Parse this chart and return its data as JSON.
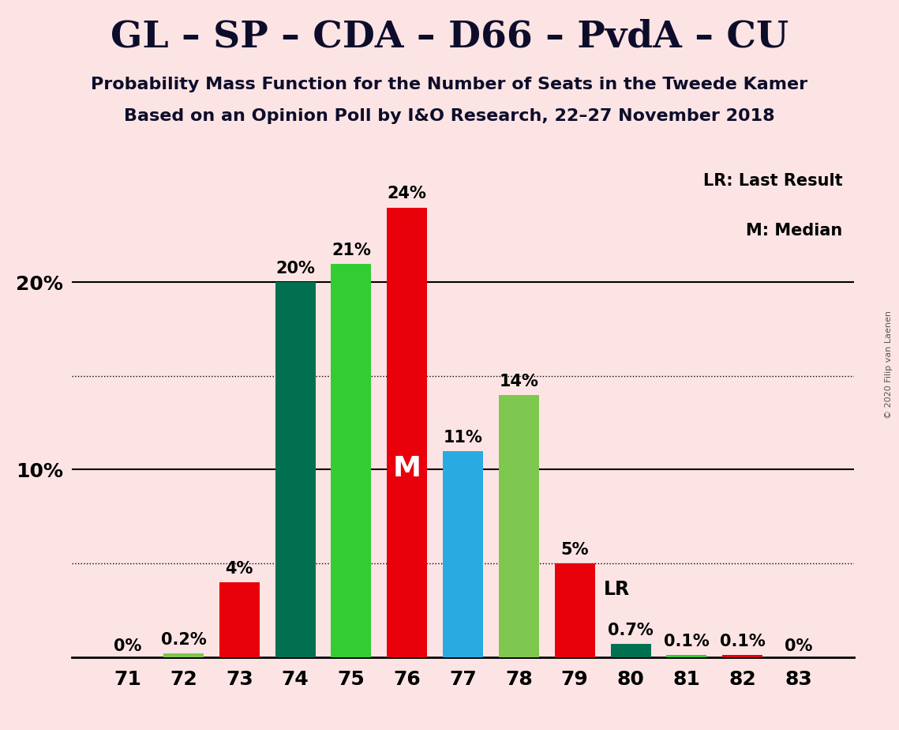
{
  "title": "GL – SP – CDA – D66 – PvdA – CU",
  "subtitle1": "Probability Mass Function for the Number of Seats in the Tweede Kamer",
  "subtitle2": "Based on an Opinion Poll by I&O Research, 22–27 November 2018",
  "copyright": "© 2020 Filip van Laenen",
  "seats": [
    71,
    72,
    73,
    74,
    75,
    76,
    77,
    78,
    79,
    80,
    81,
    82,
    83
  ],
  "values": [
    0.0,
    0.2,
    4.0,
    20.0,
    21.0,
    24.0,
    11.0,
    14.0,
    5.0,
    0.7,
    0.1,
    0.1,
    0.0
  ],
  "colors": [
    "#7ec850",
    "#7ec850",
    "#e8000b",
    "#007050",
    "#33cc33",
    "#e8000b",
    "#29abe2",
    "#7ec850",
    "#e8000b",
    "#007050",
    "#33cc33",
    "#e8000b",
    "#7ec850"
  ],
  "labels": [
    "0%",
    "0.2%",
    "4%",
    "20%",
    "21%",
    "24%",
    "11%",
    "14%",
    "5%",
    "0.7%",
    "0.1%",
    "0.1%",
    "0%"
  ],
  "median_seat": 76,
  "lr_seat": 79,
  "background_color": "#fce4e4",
  "legend_lr": "LR: Last Result",
  "legend_m": "M: Median",
  "lr_label": "LR",
  "median_label": "M",
  "ylim": [
    0,
    26.5
  ],
  "yticks_solid": [
    10,
    20
  ],
  "ytick_labels_solid": [
    "10%",
    "20%"
  ],
  "dotted_lines": [
    5,
    15
  ],
  "bar_width": 0.72,
  "title_fontsize": 34,
  "subtitle_fontsize": 16,
  "label_fontsize": 15,
  "tick_fontsize": 18,
  "legend_fontsize": 15
}
